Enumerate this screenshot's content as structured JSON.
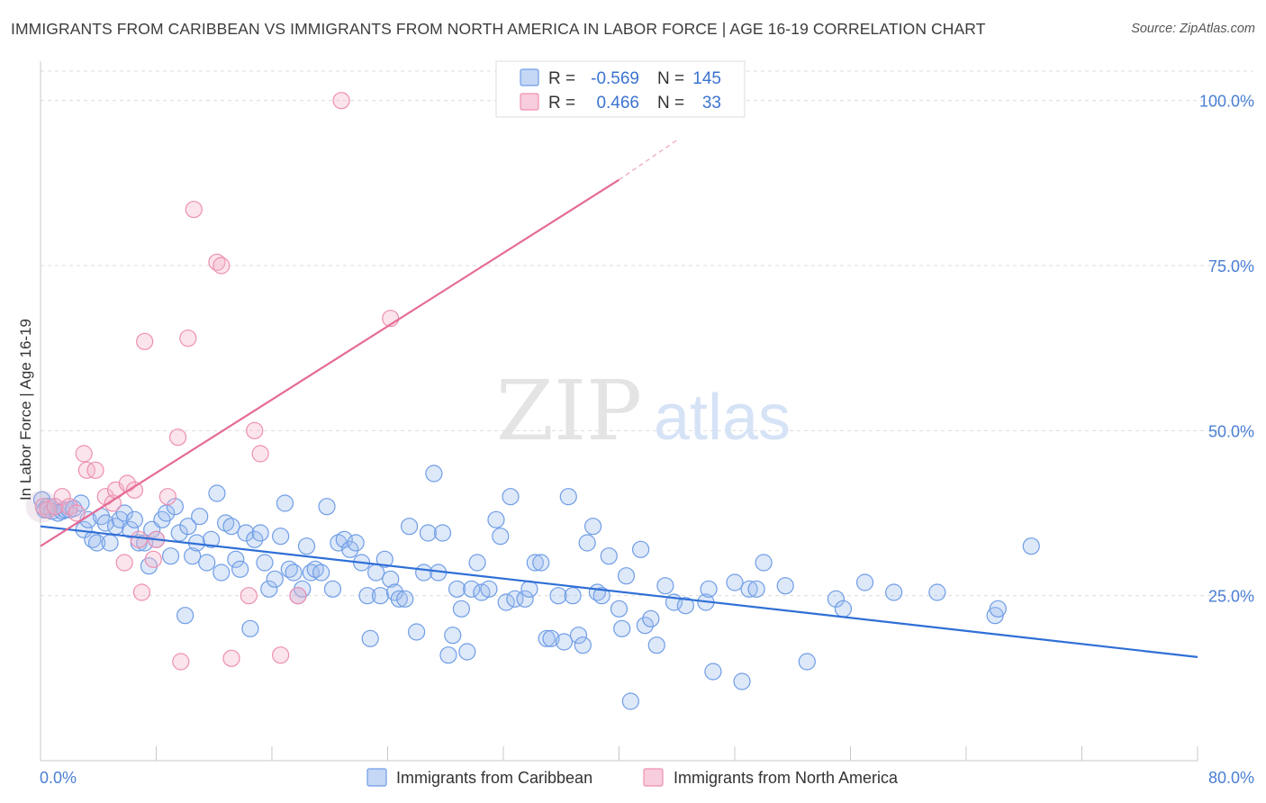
{
  "header": {
    "title": "IMMIGRANTS FROM CARIBBEAN VS IMMIGRANTS FROM NORTH AMERICA IN LABOR FORCE | AGE 16-19 CORRELATION CHART",
    "source": "Source: ZipAtlas.com"
  },
  "watermark": {
    "zip": "ZIP",
    "atlas": "atlas"
  },
  "legend": {
    "r_label": "R =",
    "n_label": "N =",
    "rows": [
      {
        "r": "-0.569",
        "n": "145",
        "color": "#6f9de6"
      },
      {
        "r": "0.466",
        "n": "33",
        "color": "#ee8fb0"
      }
    ]
  },
  "chart_data": {
    "type": "scatter",
    "ylabel": "In Labor Force | Age 16-19",
    "xlim": [
      0,
      80
    ],
    "ylim": [
      0,
      105
    ],
    "x_tick_labels": [
      {
        "value": 0,
        "label": "0.0%"
      },
      {
        "value": 80,
        "label": "80.0%"
      }
    ],
    "y_tick_labels": [
      {
        "value": 25,
        "label": "25.0%"
      },
      {
        "value": 50,
        "label": "50.0%"
      },
      {
        "value": 75,
        "label": "75.0%"
      },
      {
        "value": 100,
        "label": "100.0%"
      }
    ],
    "series": [
      {
        "name": "Immigrants from Caribbean",
        "color": "#6f9de6",
        "trend": {
          "x": [
            0,
            80
          ],
          "y": [
            35.5,
            15.7
          ]
        },
        "points": [
          [
            0.1,
            39.5
          ],
          [
            0.3,
            38
          ],
          [
            0.5,
            38.5
          ],
          [
            0.8,
            37.8
          ],
          [
            1,
            38.5
          ],
          [
            1.2,
            37.5
          ],
          [
            1.5,
            37.8
          ],
          [
            1.7,
            38
          ],
          [
            2,
            38
          ],
          [
            2.3,
            38.2
          ],
          [
            2.8,
            39
          ],
          [
            3,
            35
          ],
          [
            3.3,
            36.5
          ],
          [
            3.6,
            33.5
          ],
          [
            3.9,
            33
          ],
          [
            4.2,
            37
          ],
          [
            4.5,
            36
          ],
          [
            4.8,
            33
          ],
          [
            5.2,
            35.5
          ],
          [
            5.5,
            36.5
          ],
          [
            5.8,
            37.5
          ],
          [
            6.2,
            35
          ],
          [
            6.5,
            36.5
          ],
          [
            6.8,
            33
          ],
          [
            7.2,
            33
          ],
          [
            7.5,
            29.5
          ],
          [
            7.7,
            35
          ],
          [
            8,
            33.5
          ],
          [
            8.4,
            36.5
          ],
          [
            8.7,
            37.5
          ],
          [
            9,
            31
          ],
          [
            9.3,
            38.5
          ],
          [
            9.6,
            34.5
          ],
          [
            10,
            22
          ],
          [
            10.2,
            35.5
          ],
          [
            10.5,
            31
          ],
          [
            10.8,
            33
          ],
          [
            11,
            37
          ],
          [
            11.5,
            30
          ],
          [
            11.8,
            33.5
          ],
          [
            12.2,
            40.5
          ],
          [
            12.5,
            28.5
          ],
          [
            12.8,
            36
          ],
          [
            13.2,
            35.5
          ],
          [
            13.5,
            30.5
          ],
          [
            13.8,
            29
          ],
          [
            14.2,
            34.5
          ],
          [
            14.5,
            20
          ],
          [
            14.8,
            33.5
          ],
          [
            15.2,
            34.5
          ],
          [
            15.5,
            30
          ],
          [
            15.8,
            26
          ],
          [
            16.2,
            27.5
          ],
          [
            16.6,
            34
          ],
          [
            16.9,
            39
          ],
          [
            17.2,
            29
          ],
          [
            17.5,
            28.5
          ],
          [
            17.8,
            25
          ],
          [
            18.1,
            26
          ],
          [
            18.4,
            32.5
          ],
          [
            18.7,
            28.5
          ],
          [
            19,
            29
          ],
          [
            19.4,
            28.5
          ],
          [
            19.8,
            38.5
          ],
          [
            20.2,
            26
          ],
          [
            20.6,
            33
          ],
          [
            21,
            33.5
          ],
          [
            21.4,
            32
          ],
          [
            21.8,
            33
          ],
          [
            22.2,
            30
          ],
          [
            22.6,
            25
          ],
          [
            22.8,
            18.5
          ],
          [
            23.2,
            28.5
          ],
          [
            23.5,
            25
          ],
          [
            23.8,
            30.5
          ],
          [
            24.2,
            27.5
          ],
          [
            24.5,
            25.5
          ],
          [
            24.8,
            24.5
          ],
          [
            25.2,
            24.5
          ],
          [
            25.5,
            35.5
          ],
          [
            26,
            19.5
          ],
          [
            26.5,
            28.5
          ],
          [
            26.8,
            34.5
          ],
          [
            27.2,
            43.5
          ],
          [
            27.5,
            28.5
          ],
          [
            27.8,
            34.5
          ],
          [
            28.2,
            16
          ],
          [
            28.5,
            19
          ],
          [
            28.8,
            26
          ],
          [
            29.1,
            23
          ],
          [
            29.5,
            16.5
          ],
          [
            29.8,
            26
          ],
          [
            30.2,
            30
          ],
          [
            30.5,
            25.5
          ],
          [
            31,
            26
          ],
          [
            31.5,
            36.5
          ],
          [
            31.8,
            34
          ],
          [
            32.2,
            24
          ],
          [
            32.5,
            40
          ],
          [
            32.8,
            24.5
          ],
          [
            33.5,
            24.5
          ],
          [
            33.8,
            26
          ],
          [
            34.2,
            30
          ],
          [
            34.6,
            30
          ],
          [
            35,
            18.5
          ],
          [
            35.3,
            18.5
          ],
          [
            35.8,
            25
          ],
          [
            36.2,
            18
          ],
          [
            36.5,
            40
          ],
          [
            36.8,
            25
          ],
          [
            37.2,
            19
          ],
          [
            37.5,
            17.5
          ],
          [
            37.8,
            33
          ],
          [
            38.2,
            35.5
          ],
          [
            38.5,
            25.5
          ],
          [
            38.8,
            25
          ],
          [
            39.3,
            31
          ],
          [
            40,
            23
          ],
          [
            40.2,
            20
          ],
          [
            40.5,
            28
          ],
          [
            40.8,
            9
          ],
          [
            41.5,
            32
          ],
          [
            41.8,
            20.5
          ],
          [
            42.2,
            21.5
          ],
          [
            42.6,
            17.5
          ],
          [
            43.2,
            26.5
          ],
          [
            43.8,
            24
          ],
          [
            44.6,
            23.5
          ],
          [
            46,
            24
          ],
          [
            46.2,
            26
          ],
          [
            46.5,
            13.5
          ],
          [
            48,
            27
          ],
          [
            48.5,
            12
          ],
          [
            49,
            26
          ],
          [
            49.5,
            26
          ],
          [
            50,
            30
          ],
          [
            51.5,
            26.5
          ],
          [
            53,
            15
          ],
          [
            55,
            24.5
          ],
          [
            55.5,
            23
          ],
          [
            57,
            27
          ],
          [
            59,
            25.5
          ],
          [
            62,
            25.5
          ],
          [
            66,
            22
          ],
          [
            66.2,
            23
          ],
          [
            68.5,
            32.5
          ]
        ]
      },
      {
        "name": "Immigrants from North America",
        "color": "#ee8fb0",
        "trend": {
          "x": [
            0,
            40
          ],
          "y": [
            32.5,
            88
          ]
        },
        "trend_dash": {
          "x": [
            40,
            44
          ],
          "y": [
            88,
            94
          ]
        },
        "points": [
          [
            0.2,
            38.5
          ],
          [
            0.5,
            38
          ],
          [
            1,
            38.5
          ],
          [
            1.5,
            40
          ],
          [
            2,
            38.5
          ],
          [
            2.5,
            37.5
          ],
          [
            3,
            46.5
          ],
          [
            3.2,
            44
          ],
          [
            3.8,
            44
          ],
          [
            4.5,
            40
          ],
          [
            5,
            39
          ],
          [
            5.2,
            41
          ],
          [
            5.8,
            30
          ],
          [
            6,
            42
          ],
          [
            6.5,
            41
          ],
          [
            6.8,
            33.5
          ],
          [
            7,
            25.5
          ],
          [
            7.2,
            63.5
          ],
          [
            7.8,
            30.5
          ],
          [
            8,
            33.5
          ],
          [
            8.8,
            40
          ],
          [
            9.5,
            49
          ],
          [
            9.7,
            15
          ],
          [
            10.2,
            64
          ],
          [
            10.6,
            83.5
          ],
          [
            12.2,
            75.5
          ],
          [
            12.5,
            75
          ],
          [
            13.2,
            15.5
          ],
          [
            14.4,
            25
          ],
          [
            14.8,
            50
          ],
          [
            15.2,
            46.5
          ],
          [
            16.6,
            16
          ],
          [
            17.8,
            25
          ],
          [
            20.8,
            100
          ],
          [
            24.2,
            67
          ]
        ]
      }
    ]
  },
  "bottom_legend": [
    {
      "label": "Immigrants from Caribbean",
      "color": "#6f9de6"
    },
    {
      "label": "Immigrants from North America",
      "color": "#ee8fb0"
    }
  ]
}
